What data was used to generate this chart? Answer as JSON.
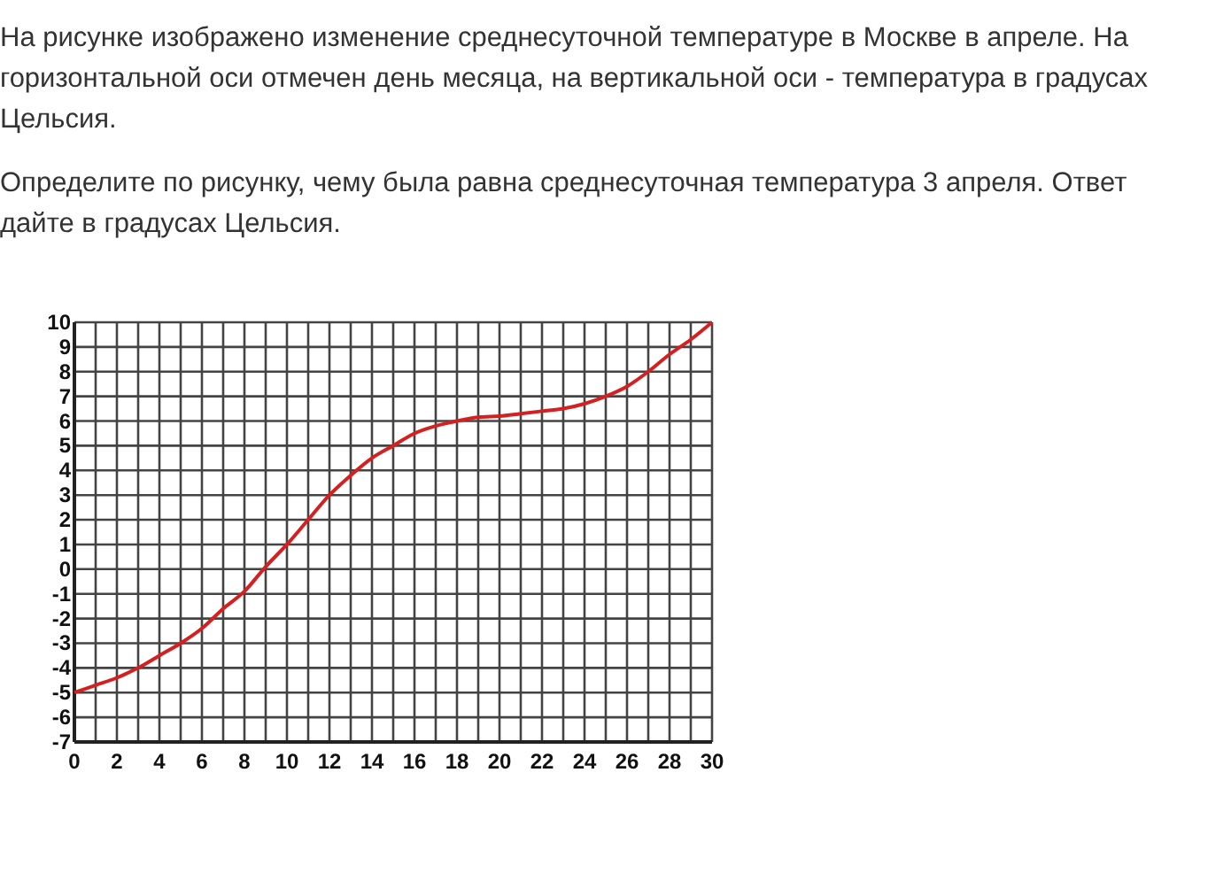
{
  "chart_data": {
    "type": "line",
    "title": "На рисунке изображено изменение среднесуточной температуре в Москве в апреле. На горизонтальной оси отмечен день месяца, на вертикальной оси - температура в градусах Цельсия.",
    "subtitle": "Определите по рисунку, чему была равна среднесуточная температура 3 апреля. Ответ дайте в градусах Цельсия.",
    "x": [
      0,
      1,
      2,
      3,
      4,
      5,
      6,
      7,
      8,
      9,
      10,
      11,
      12,
      13,
      14,
      15,
      16,
      17,
      18,
      19,
      20,
      21,
      22,
      23,
      24,
      25,
      26,
      27,
      28,
      29,
      30
    ],
    "series": [
      {
        "color": "#d42020",
        "values": [
          -5,
          -4.7,
          -4.4,
          -4,
          -3.5,
          -3,
          -2.4,
          -1.6,
          -0.9,
          0.1,
          1,
          2,
          3,
          3.8,
          4.5,
          5,
          5.5,
          5.8,
          6,
          6.15,
          6.2,
          6.3,
          6.4,
          6.5,
          6.7,
          7,
          7.4,
          8,
          8.7,
          9.3,
          10
        ]
      }
    ],
    "xlim": [
      0,
      30
    ],
    "ylim": [
      -7,
      10
    ],
    "xticks": [
      0,
      {
        "value": 1,
        "label": null
      },
      2,
      {
        "value": 3,
        "label": null
      },
      4,
      {
        "value": 5,
        "label": null
      },
      6,
      {
        "value": 7,
        "label": null
      },
      8,
      {
        "value": 9,
        "label": null
      },
      10,
      {
        "value": 11,
        "label": null
      },
      12,
      {
        "value": 13,
        "label": null
      },
      14,
      {
        "value": 15,
        "label": null
      },
      16,
      {
        "value": 17,
        "label": null
      },
      18,
      {
        "value": 19,
        "label": null
      },
      20,
      {
        "value": 21,
        "label": null
      },
      22,
      {
        "value": 23,
        "label": null
      },
      24,
      {
        "value": 25,
        "label": null
      },
      26,
      {
        "value": 27,
        "label": null
      },
      28,
      {
        "value": 29,
        "label": null
      },
      30
    ],
    "yticks": [
      -7,
      -6,
      -5,
      -4,
      -3,
      -2,
      -1,
      0,
      1,
      2,
      3,
      4,
      5,
      6,
      7,
      8,
      9,
      10
    ],
    "grid": true,
    "marker": "none",
    "line_style": "solid"
  }
}
